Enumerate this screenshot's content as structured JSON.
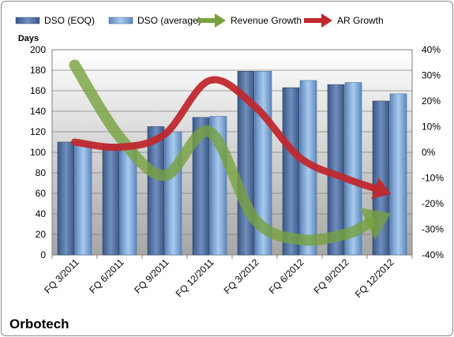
{
  "chart_data": {
    "type": "bar",
    "title": "",
    "company": "Orbotech",
    "categories": [
      "FQ 3/2011",
      "FQ 6/2011",
      "FQ 9/2011",
      "FQ 12/2011",
      "FQ 3/2012",
      "FQ 6/2012",
      "FQ 9/2012",
      "FQ 12/2012"
    ],
    "y_left_label": "Days",
    "y_left_lim": [
      0,
      200
    ],
    "y_left_ticks": [
      0,
      20,
      40,
      60,
      80,
      100,
      120,
      140,
      160,
      180,
      200
    ],
    "y_right_lim": [
      -40,
      40
    ],
    "y_right_ticks": [
      "-40%",
      "-30%",
      "-20%",
      "-10%",
      "0%",
      "10%",
      "20%",
      "30%",
      "40%"
    ],
    "series": [
      {
        "name": "DSO (EOQ)",
        "kind": "bar",
        "axis": "left",
        "color": "#4f6e9e",
        "values": [
          110,
          108,
          125,
          134,
          179,
          163,
          166,
          150
        ]
      },
      {
        "name": "DSO (average)",
        "kind": "bar",
        "axis": "left",
        "color": "#7fa9d8",
        "values": [
          110,
          109,
          120,
          135,
          179,
          170,
          168,
          157
        ]
      },
      {
        "name": "Revenue Growth",
        "kind": "arrow-line",
        "axis": "right",
        "color": "#77a13f",
        "values": [
          34,
          6,
          -9,
          8,
          -26,
          -34,
          -32,
          -24
        ]
      },
      {
        "name": "AR Growth",
        "kind": "arrow-line",
        "axis": "right",
        "color": "#c0282e",
        "values": [
          4,
          2,
          7,
          28,
          18,
          -2,
          -10,
          -16
        ]
      }
    ],
    "grid": true,
    "legend_position": "top"
  }
}
